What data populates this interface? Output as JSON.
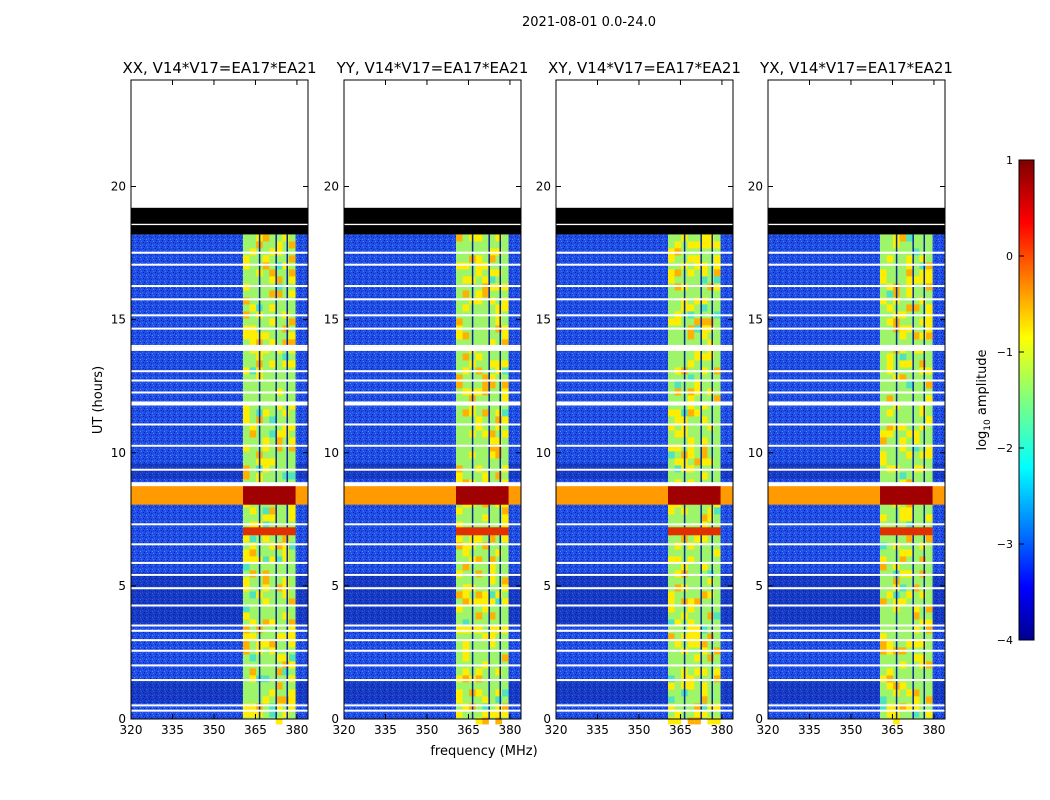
{
  "chart_data": {
    "type": "heatmap",
    "suptitle": "2021-08-01 0.0-24.0",
    "xlabel": "frequency (MHz)",
    "ylabel": "UT (hours)",
    "xlim": [
      320,
      384
    ],
    "ylim": [
      0,
      24
    ],
    "x_ticks": [
      320,
      335,
      350,
      365,
      380
    ],
    "y_ticks": [
      0,
      5,
      10,
      15,
      20
    ],
    "data_end_hour": 18.2,
    "flagged_block_hours": [
      [
        18.6,
        19.2
      ],
      [
        18.2,
        18.55
      ]
    ],
    "bright_band_mhz": [
      360.5,
      379.5
    ],
    "rfi_event_hours": [
      8.05,
      8.8
    ],
    "panels": [
      {
        "title": "XX, V14*V17=EA17*EA21"
      },
      {
        "title": "YY, V14*V17=EA17*EA21"
      },
      {
        "title": "XY, V14*V17=EA17*EA21"
      },
      {
        "title": "YX, V14*V17=EA17*EA21"
      }
    ],
    "colorbar": {
      "label": "log10 amplitude",
      "label_prefix": "log",
      "label_sub": "10",
      "label_suffix": " amplitude",
      "range": [
        -4,
        1
      ],
      "ticks": [
        1,
        0,
        -1,
        -2,
        -3,
        -4
      ],
      "tick_labels": [
        "1",
        "0",
        "−1",
        "−2",
        "−3",
        "−4"
      ],
      "colormap": "jet"
    }
  }
}
